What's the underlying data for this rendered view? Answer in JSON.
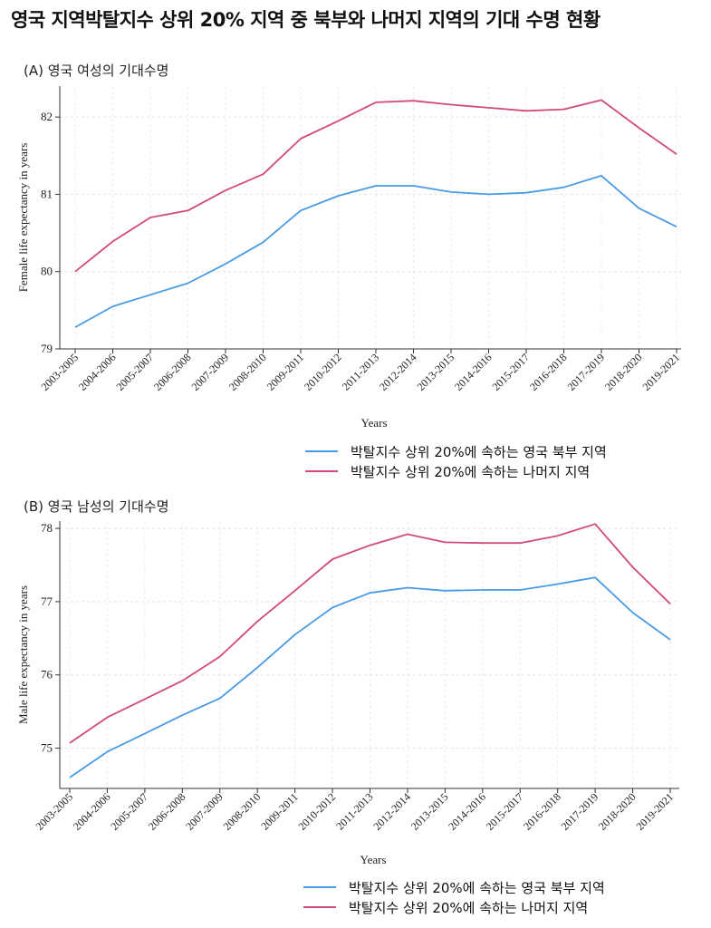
{
  "page": {
    "title": "영국 지역박탈지수 상위 20% 지역 중 북부와 나머지 지역의 기대 수명 현황"
  },
  "panels": [
    {
      "label": "(A) 영국 여성의 기대수명"
    },
    {
      "label": "(B) 영국 남성의 기대수명"
    }
  ],
  "colors": {
    "north": "#4a9be6",
    "rest": "#d24a7a"
  },
  "chart_data": [
    {
      "type": "line",
      "title": "",
      "xlabel": "Years",
      "ylabel": "Female life expectancy in years",
      "ylim": [
        79,
        82.4
      ],
      "yticks": [
        "79",
        "80",
        "81",
        "82"
      ],
      "grid": true,
      "legend_position": "bottom",
      "categories": [
        "2003-2005",
        "2004-2006",
        "2005-2007",
        "2006-2008",
        "2007-2009",
        "2008-2010",
        "2009-2011",
        "2010-2012",
        "2011-2013",
        "2012-2014",
        "2013-2015",
        "2014-2016",
        "2015-2017",
        "2016-2018",
        "2017-2019",
        "2018-2020",
        "2019-2021"
      ],
      "series": [
        {
          "name": "박탈지수 상위 20%에 속하는 영국 북부 지역",
          "color": "#4a9be6",
          "values": [
            79.28,
            79.55,
            79.7,
            79.85,
            80.1,
            80.38,
            80.79,
            80.98,
            81.11,
            81.11,
            81.03,
            81.0,
            81.02,
            81.09,
            81.24,
            80.82,
            80.58
          ]
        },
        {
          "name": "박탈지수 상위 20%에 속하는 나머지 지역",
          "color": "#d24a7a",
          "values": [
            80.0,
            80.39,
            80.7,
            80.79,
            81.05,
            81.26,
            81.72,
            81.95,
            82.19,
            82.21,
            82.16,
            82.12,
            82.08,
            82.1,
            82.22,
            81.86,
            81.52
          ]
        }
      ]
    },
    {
      "type": "line",
      "title": "",
      "xlabel": "Years",
      "ylabel": "Male life expectancy in years",
      "ylim": [
        74.45,
        78.1
      ],
      "yticks": [
        "75",
        "76",
        "77",
        "78"
      ],
      "grid": true,
      "legend_position": "bottom",
      "categories": [
        "2003-2005",
        "2004-2006",
        "2005-2007",
        "2006-2008",
        "2007-2009",
        "2008-2010",
        "2009-2011",
        "2010-2012",
        "2011-2013",
        "2012-2014",
        "2013-2015",
        "2014-2016",
        "2015-2017",
        "2016-2018",
        "2017-2019",
        "2018-2020",
        "2019-2021"
      ],
      "series": [
        {
          "name": "박탈지수 상위 20%에 속하는 영국 북부 지역",
          "color": "#4a9be6",
          "values": [
            74.6,
            74.95,
            75.2,
            75.45,
            75.68,
            76.1,
            76.55,
            76.92,
            77.12,
            77.19,
            77.15,
            77.16,
            77.16,
            77.24,
            77.33,
            76.85,
            76.48
          ]
        },
        {
          "name": "박탈지수 상위 20%에 속하는 나머지 지역",
          "color": "#d24a7a",
          "values": [
            75.07,
            75.42,
            75.67,
            75.92,
            76.25,
            76.73,
            77.15,
            77.58,
            77.77,
            77.92,
            77.81,
            77.8,
            77.8,
            77.9,
            78.06,
            77.47,
            76.97
          ]
        }
      ]
    }
  ]
}
